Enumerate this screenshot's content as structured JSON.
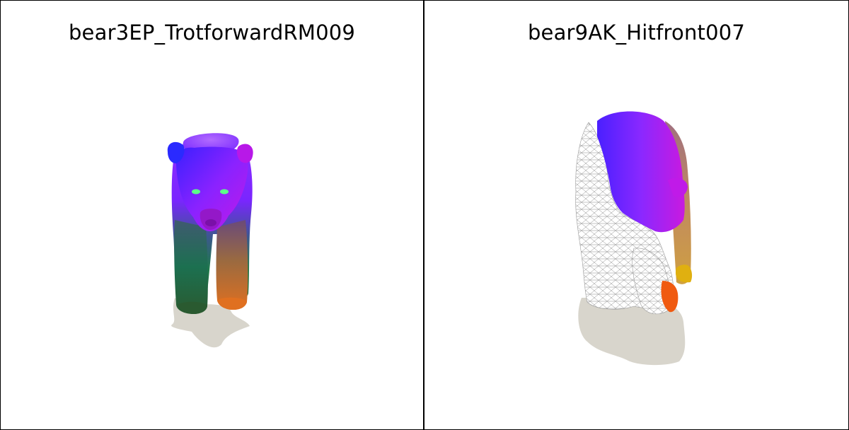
{
  "panels": [
    {
      "title": "bear3EP_TrotforwardRM009",
      "view": "front-view-colored-mesh"
    },
    {
      "title": "bear9AK_Hitfront007",
      "view": "three-quarter-view-partial-wireframe"
    }
  ],
  "colors": {
    "shadow": "#d8d5cc",
    "background": "#ffffff",
    "divider": "#000000",
    "wireframe": "#8a8a8a"
  }
}
